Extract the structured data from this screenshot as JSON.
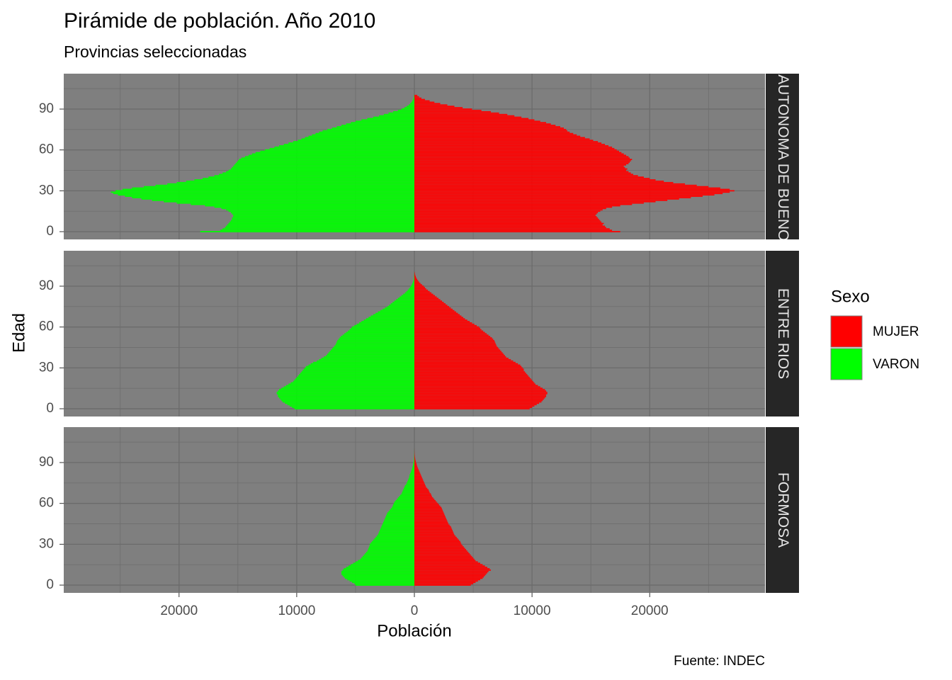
{
  "chart_data": {
    "type": "bar",
    "title": "Pirámide de población. Año 2010",
    "subtitle": "Provincias seleccionadas",
    "caption": "Fuente: INDEC",
    "x_label": "Población",
    "y_label": "Edad",
    "legend_title": "Sexo",
    "series": [
      {
        "name": "MUJER",
        "color": "#ff0000"
      },
      {
        "name": "VARON",
        "color": "#00ff00"
      }
    ],
    "xlim": [
      -29800,
      29800
    ],
    "xticks": [
      {
        "value": -20000,
        "label": "20000"
      },
      {
        "value": -10000,
        "label": "10000"
      },
      0,
      10000,
      20000
    ],
    "x_minor_breaks": [
      -25000,
      -15000,
      -5000,
      5000,
      15000,
      25000
    ],
    "ylim": [
      -5.7,
      116
    ],
    "yticks": [
      0,
      30,
      60,
      90
    ],
    "y_minor_breaks": [
      15,
      45,
      75,
      105
    ],
    "ages": [
      0,
      1,
      2,
      3,
      4,
      5,
      6,
      7,
      8,
      9,
      10,
      11,
      12,
      13,
      14,
      15,
      16,
      17,
      18,
      19,
      20,
      21,
      22,
      23,
      24,
      25,
      26,
      27,
      28,
      29,
      30,
      31,
      32,
      33,
      34,
      35,
      36,
      37,
      38,
      39,
      40,
      41,
      42,
      43,
      44,
      45,
      46,
      47,
      48,
      49,
      50,
      51,
      52,
      53,
      54,
      55,
      56,
      57,
      58,
      59,
      60,
      61,
      62,
      63,
      64,
      65,
      66,
      67,
      68,
      69,
      70,
      71,
      72,
      73,
      74,
      75,
      76,
      77,
      78,
      79,
      80,
      81,
      82,
      83,
      84,
      85,
      86,
      87,
      88,
      89,
      90,
      91,
      92,
      93,
      94,
      95,
      96,
      97,
      98,
      99,
      100
    ],
    "panels": [
      {
        "label": "CIUDAD AUTONOMA DE BUENOS AIRES",
        "values": [
          [
            17500,
            16800,
            16600,
            16300,
            16200,
            16000,
            16100,
            15900,
            15800,
            15700,
            15600,
            15500,
            15400,
            15500,
            15600,
            15800,
            16000,
            16300,
            16800,
            17500,
            18500,
            19500,
            20500,
            21500,
            22500,
            23500,
            24500,
            25500,
            26200,
            26800,
            27200,
            26800,
            26000,
            25000,
            24000,
            23000,
            22000,
            21200,
            20500,
            20000,
            19500,
            19000,
            18600,
            18400,
            18200,
            18000,
            18100,
            17900,
            17800,
            18000,
            18200,
            18300,
            18400,
            18500,
            18300,
            18200,
            18000,
            17800,
            17600,
            17400,
            17200,
            17000,
            16800,
            16500,
            16200,
            15900,
            15600,
            15200,
            14900,
            14500,
            14100,
            13800,
            13500,
            13200,
            13000,
            12900,
            12700,
            12400,
            12000,
            11600,
            11200,
            10700,
            10200,
            9700,
            9100,
            8500,
            7900,
            7200,
            6500,
            5700,
            4900,
            4100,
            3400,
            2800,
            2200,
            1700,
            1300,
            900,
            600,
            400,
            250
          ],
          [
            -18200,
            -16500,
            -16300,
            -16100,
            -16000,
            -15900,
            -15800,
            -15700,
            -15600,
            -15500,
            -15500,
            -15400,
            -15400,
            -15500,
            -15600,
            -15800,
            -16000,
            -16400,
            -17000,
            -17800,
            -19000,
            -20200,
            -21300,
            -22300,
            -23200,
            -24000,
            -24600,
            -25200,
            -25600,
            -25800,
            -25400,
            -24800,
            -24000,
            -23000,
            -22000,
            -21000,
            -20200,
            -19400,
            -18700,
            -18000,
            -17500,
            -17000,
            -16600,
            -16300,
            -16000,
            -15800,
            -15600,
            -15500,
            -15400,
            -15300,
            -15200,
            -15100,
            -15000,
            -14900,
            -14700,
            -14400,
            -14100,
            -13800,
            -13500,
            -13100,
            -12700,
            -12300,
            -11900,
            -11500,
            -11100,
            -10700,
            -10300,
            -9900,
            -9600,
            -9300,
            -9000,
            -8700,
            -8400,
            -8100,
            -7800,
            -7400,
            -7000,
            -6600,
            -6200,
            -5800,
            -5400,
            -5000,
            -4500,
            -4000,
            -3500,
            -3000,
            -2600,
            -2200,
            -1800,
            -1400,
            -1100,
            -850,
            -650,
            -480,
            -350,
            -250,
            -170,
            -110,
            -70,
            -40,
            -20
          ]
        ]
      },
      {
        "label": "ENTRE RIOS",
        "values": [
          [
            9800,
            10000,
            10200,
            10400,
            10600,
            10800,
            10900,
            11000,
            11100,
            11200,
            11200,
            11300,
            11300,
            11200,
            11100,
            10900,
            10700,
            10500,
            10300,
            10200,
            10100,
            10000,
            9900,
            9800,
            9700,
            9600,
            9500,
            9400,
            9300,
            9300,
            9200,
            9100,
            9000,
            8800,
            8600,
            8400,
            8200,
            8000,
            7800,
            7700,
            7600,
            7500,
            7400,
            7300,
            7200,
            7100,
            7000,
            6950,
            6900,
            6850,
            6800,
            6700,
            6600,
            6450,
            6300,
            6150,
            6000,
            5850,
            5700,
            5600,
            5500,
            5300,
            5100,
            4900,
            4700,
            4500,
            4300,
            4150,
            4000,
            3850,
            3700,
            3550,
            3400,
            3250,
            3100,
            2950,
            2800,
            2650,
            2500,
            2350,
            2200,
            2050,
            1900,
            1750,
            1600,
            1450,
            1300,
            1150,
            1000,
            900,
            800,
            650,
            520,
            410,
            320,
            240,
            170,
            120,
            80,
            50,
            30
          ],
          [
            -10200,
            -10400,
            -10600,
            -10800,
            -11000,
            -11200,
            -11300,
            -11400,
            -11500,
            -11600,
            -11600,
            -11700,
            -11700,
            -11600,
            -11500,
            -11300,
            -11100,
            -10900,
            -10700,
            -10500,
            -10300,
            -10200,
            -10100,
            -10000,
            -9900,
            -9800,
            -9700,
            -9600,
            -9500,
            -9400,
            -9300,
            -9200,
            -9000,
            -8800,
            -8600,
            -8300,
            -8100,
            -7900,
            -7700,
            -7500,
            -7400,
            -7300,
            -7200,
            -7100,
            -7000,
            -6900,
            -6800,
            -6700,
            -6650,
            -6600,
            -6550,
            -6450,
            -6350,
            -6250,
            -6100,
            -5950,
            -5800,
            -5650,
            -5500,
            -5400,
            -5300,
            -5100,
            -4900,
            -4700,
            -4500,
            -4300,
            -4100,
            -3900,
            -3700,
            -3500,
            -3300,
            -3100,
            -2900,
            -2700,
            -2500,
            -2300,
            -2150,
            -2000,
            -1850,
            -1700,
            -1550,
            -1400,
            -1250,
            -1100,
            -950,
            -800,
            -680,
            -570,
            -470,
            -380,
            -300,
            -230,
            -170,
            -120,
            -85,
            -60,
            -40,
            -25,
            -15,
            -10,
            -5
          ]
        ]
      },
      {
        "label": "FORMOSA",
        "values": [
          [
            4800,
            5000,
            5200,
            5400,
            5600,
            5800,
            5900,
            6000,
            6100,
            6200,
            6300,
            6500,
            6400,
            6200,
            6000,
            5800,
            5600,
            5400,
            5200,
            5100,
            5000,
            4900,
            4800,
            4700,
            4600,
            4500,
            4400,
            4300,
            4200,
            4100,
            4000,
            3950,
            3900,
            3800,
            3700,
            3600,
            3500,
            3400,
            3350,
            3300,
            3250,
            3200,
            3150,
            3100,
            3000,
            2900,
            2850,
            2800,
            2750,
            2700,
            2650,
            2600,
            2550,
            2500,
            2450,
            2400,
            2350,
            2300,
            2200,
            2100,
            2000,
            1900,
            1800,
            1700,
            1600,
            1500,
            1450,
            1400,
            1300,
            1250,
            1200,
            1100,
            1000,
            950,
            900,
            850,
            800,
            750,
            700,
            650,
            600,
            550,
            500,
            450,
            400,
            350,
            300,
            250,
            220,
            190,
            150,
            120,
            90,
            70,
            50,
            35,
            25,
            15,
            10,
            5,
            3
          ],
          [
            -5000,
            -5100,
            -5300,
            -5500,
            -5700,
            -5900,
            -6000,
            -6100,
            -6200,
            -6200,
            -6200,
            -6100,
            -6000,
            -5800,
            -5600,
            -5400,
            -5200,
            -5000,
            -4800,
            -4600,
            -4500,
            -4400,
            -4300,
            -4200,
            -4100,
            -4000,
            -3950,
            -3900,
            -3850,
            -3800,
            -3800,
            -3700,
            -3600,
            -3500,
            -3400,
            -3300,
            -3200,
            -3100,
            -3050,
            -3000,
            -2950,
            -2900,
            -2850,
            -2800,
            -2750,
            -2700,
            -2650,
            -2600,
            -2550,
            -2500,
            -2450,
            -2400,
            -2350,
            -2300,
            -2200,
            -2100,
            -2000,
            -1900,
            -1850,
            -1800,
            -1750,
            -1700,
            -1600,
            -1500,
            -1400,
            -1300,
            -1200,
            -1100,
            -1050,
            -1000,
            -950,
            -900,
            -850,
            -800,
            -700,
            -650,
            -600,
            -550,
            -500,
            -450,
            -430,
            -400,
            -350,
            -300,
            -260,
            -220,
            -180,
            -150,
            -120,
            -100,
            -80,
            -60,
            -45,
            -30,
            -20,
            -15,
            -10,
            -7,
            -5,
            -3,
            -2
          ]
        ]
      }
    ]
  }
}
